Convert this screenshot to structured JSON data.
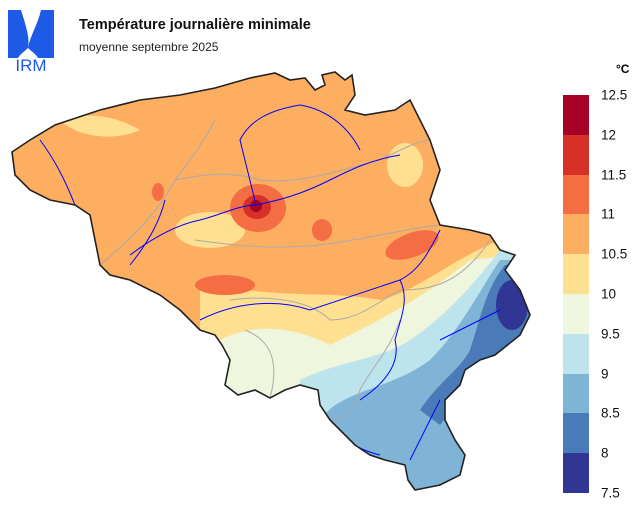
{
  "logo": {
    "text": "IRM",
    "color": "#1d5be6"
  },
  "title": "Température journalière minimale",
  "subtitle": "moyenne septembre 2025",
  "legend": {
    "unit": "°C",
    "ticks": [
      "12.5",
      "12",
      "11.5",
      "11",
      "10.5",
      "10",
      "9.5",
      "9",
      "8.5",
      "8",
      "7.5"
    ],
    "colors": [
      "#a50026",
      "#d73027",
      "#f46d43",
      "#fdae61",
      "#fee090",
      "#eef6de",
      "#bde3ec",
      "#7fb4d6",
      "#4a7ab8",
      "#313695"
    ]
  },
  "map": {
    "region": "Belgium",
    "rivers_color": "#0000ff",
    "borders_color": "#aaaaaa",
    "outline_color": "#222222"
  }
}
